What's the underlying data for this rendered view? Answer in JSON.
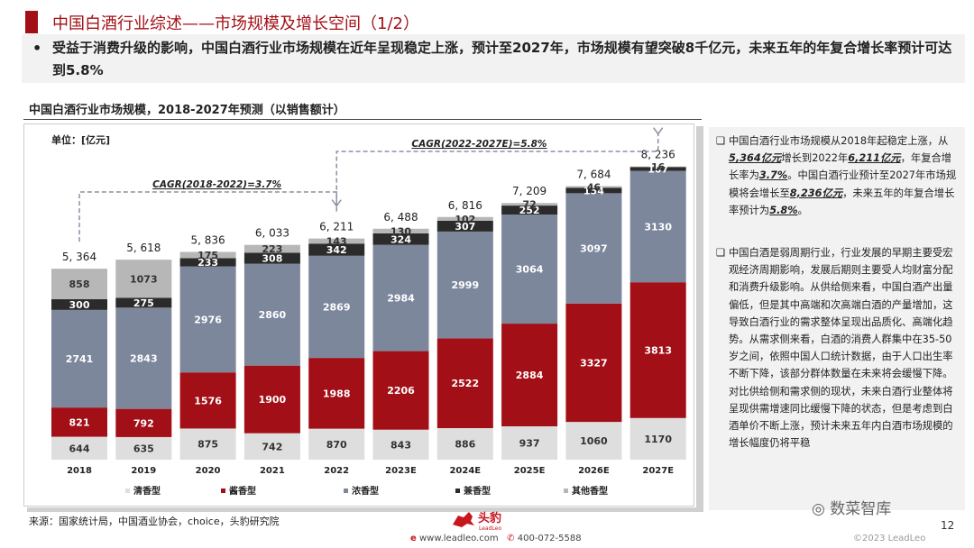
{
  "header": {
    "title": "中国白酒行业综述——市场规模及增长空间（1/2）",
    "bullet": "•",
    "summary": "受益于消费升级的影响，中国白酒行业市场规模在近年呈现稳定上涨，预计至2027年，市场规模有望突破8千亿元，未来五年的年复合增长率预计可达到5.8%"
  },
  "chart_data": {
    "type": "bar",
    "stacked": true,
    "title": "中国白酒行业市场规模，2018-2027年预测（以销售额计）",
    "unit_label": "单位：[亿元]",
    "categories": [
      "2018",
      "2019",
      "2020",
      "2021",
      "2022",
      "2023E",
      "2024E",
      "2025E",
      "2026E",
      "2027E"
    ],
    "series": [
      {
        "name": "清香型",
        "color": "#dedede",
        "values": [
          644,
          635,
          875,
          742,
          870,
          843,
          886,
          937,
          1060,
          1170
        ]
      },
      {
        "name": "酱香型",
        "color": "#a30f16",
        "values": [
          821,
          792,
          1576,
          1900,
          1988,
          2206,
          2522,
          2884,
          3327,
          3813
        ]
      },
      {
        "name": "浓香型",
        "color": "#7d879c",
        "values": [
          2741,
          2843,
          2976,
          2860,
          2869,
          2984,
          2999,
          3064,
          3097,
          3130
        ]
      },
      {
        "name": "兼香型",
        "color": "#2b2b2b",
        "values": [
          300,
          275,
          233,
          308,
          342,
          324,
          307,
          252,
          154,
          107
        ]
      },
      {
        "name": "其他香型",
        "color": "#b7b7b7",
        "values": [
          858,
          1073,
          175,
          223,
          143,
          130,
          102,
          72,
          46,
          16
        ]
      }
    ],
    "totals": [
      "5, 364",
      "5, 618",
      "5, 836",
      "6, 033",
      "6, 211",
      "6, 488",
      "6, 816",
      "7, 209",
      "7, 684",
      "8, 236"
    ],
    "annotations": [
      {
        "text": "CAGR(2018-2022)=3.7%",
        "from": "2018",
        "to": "2022"
      },
      {
        "text": "CAGR(2022-2027E)=5.8%",
        "from": "2022",
        "to": "2027E"
      }
    ]
  },
  "right_panel": {
    "marker": "❑",
    "item1": {
      "t1": "中国白酒行业市场规模从2018年起稳定上涨，从",
      "h1": "5,364亿元",
      "t2": "增长到2022年",
      "h2": "6,211亿元",
      "t3": "，年复合增长率为",
      "h3": "3.7%",
      "t4": "。中国白酒行业预计至2027年市场规模将会增长至",
      "h4": "8,236亿元",
      "t5": "，未来五年的年复合增长率预计为",
      "h5": "5.8%",
      "t6": "。"
    },
    "item2": "中国白酒是弱周期行业，行业发展的早期主要受宏观经济周期影响，发展后期则主要受人均财富分配和消费升级影响。从供给侧来看，中国白酒产出量偏低，但是其中高端和次高端白酒的产量增加，这导致白酒行业的需求整体呈现出品质化、高端化趋势。从需求侧来看，白酒的消费人群集中在35-50岁之间，依照中国人口统计数据，由于人口出生率不断下降，该部分群体数量在未来将会缓慢下降。对比供给侧和需求侧的现状，未来白酒行业整体将呈现供需增速同比缓慢下降的状态，但是考虑到白酒单价不断上涨，预计未来五年内白酒市场规模的增长幅度仍将平稳"
  },
  "footer": {
    "source": "来源：国家统计局，中国酒业协会，choice，头豹研究院",
    "logo_text": "头豹",
    "logo_sub": "LeadLeo",
    "website": "www.leadleo.com",
    "phone": "400-072-5588",
    "page_number": "12",
    "copyright": "©2023 LeadLeo",
    "watermark": "数菜智库"
  }
}
